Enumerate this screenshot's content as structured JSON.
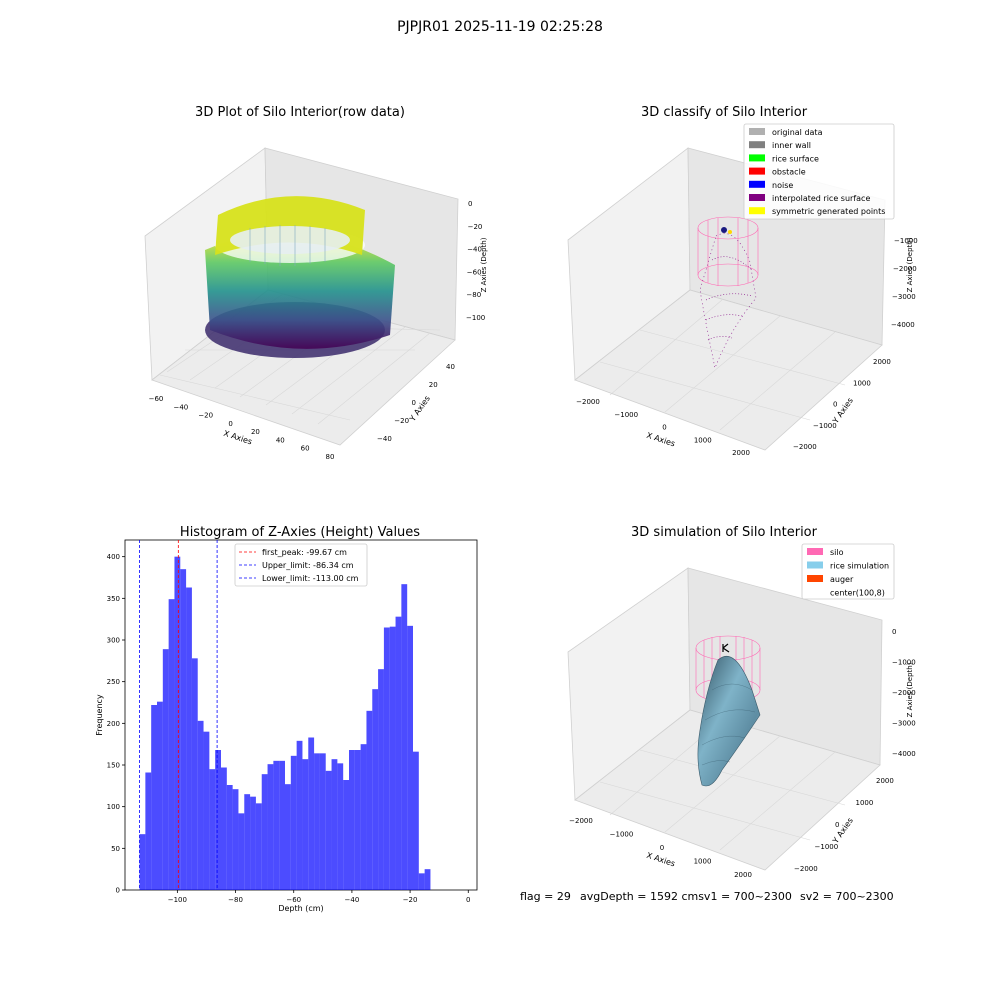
{
  "figure": {
    "suptitle": "PJPJR01 2025-11-19 02:25:28",
    "status_line": {
      "flag": "flag = 29",
      "avg_depth": "avgDepth = 1592 cmsv1 = 700~2300",
      "sv2": "sv2 = 700~2300"
    }
  },
  "panels": {
    "raw": {
      "title": "3D Plot of Silo Interior(row data)",
      "xlabel": "X Axies",
      "ylabel": "Y Axies",
      "zlabel": "Z Axies (Depth)",
      "xticks": [
        "−60",
        "−40",
        "−20",
        "0",
        "20",
        "40",
        "60",
        "80"
      ],
      "yticks": [
        "−40",
        "−20",
        "0",
        "20",
        "40"
      ],
      "zticks": [
        "0",
        "−20",
        "−40",
        "−60",
        "−80",
        "−100"
      ]
    },
    "classify": {
      "title": "3D classify of Silo Interior",
      "xlabel": "X Axies",
      "ylabel": "Y Axies",
      "zlabel": "Z Axies (Depth)",
      "xticks": [
        "−2000",
        "−1000",
        "0",
        "1000",
        "2000"
      ],
      "yticks": [
        "−2000",
        "−1000",
        "0",
        "1000",
        "2000"
      ],
      "zticks": [
        "−1000",
        "−2000",
        "−3000",
        "−4000"
      ],
      "legend": [
        {
          "label": "original data",
          "color": "#b0b0b0"
        },
        {
          "label": "inner wall",
          "color": "#808080"
        },
        {
          "label": "rice surface",
          "color": "#00ff00"
        },
        {
          "label": "obstacle",
          "color": "#ff0000"
        },
        {
          "label": "noise",
          "color": "#0000ff"
        },
        {
          "label": "interpolated rice surface",
          "color": "#800080"
        },
        {
          "label": "symmetric generated points",
          "color": "#ffff00"
        }
      ]
    },
    "simulation": {
      "title": "3D simulation of Silo Interior",
      "xlabel": "X Axies",
      "ylabel": "Y Axies",
      "zlabel": "Z Axies (Depth)",
      "xticks": [
        "−2000",
        "−1000",
        "0",
        "1000",
        "2000"
      ],
      "yticks": [
        "−2000",
        "−1000",
        "0",
        "1000",
        "2000"
      ],
      "zticks": [
        "0",
        "−1000",
        "−2000",
        "−3000",
        "−4000"
      ],
      "legend": [
        {
          "label": "silo",
          "color": "#ff69b4"
        },
        {
          "label": "rice simulation",
          "color": "#87ceeb"
        },
        {
          "label": "auger",
          "color": "#ff4500"
        },
        {
          "label": "center(100,8)",
          "color": "#ffffff"
        }
      ]
    }
  },
  "chart_data": [
    {
      "type": "bar",
      "title": "Histogram of Z-Axies (Height) Values",
      "xlabel": "Depth (cm)",
      "ylabel": "Frequency",
      "xlim": [
        -118,
        3
      ],
      "ylim": [
        0,
        420
      ],
      "xticks": [
        -100,
        -80,
        -60,
        -40,
        -20,
        0
      ],
      "yticks": [
        0,
        50,
        100,
        150,
        200,
        250,
        300,
        350,
        400
      ],
      "bar_color": "#0000ff",
      "bin_start": -113,
      "bin_width": 2.0,
      "values": [
        67,
        141,
        222,
        226,
        289,
        349,
        400,
        385,
        363,
        278,
        203,
        190,
        145,
        168,
        147,
        126,
        121,
        92,
        115,
        112,
        104,
        139,
        151,
        155,
        155,
        127,
        161,
        179,
        157,
        183,
        164,
        164,
        143,
        157,
        152,
        132,
        168,
        168,
        175,
        215,
        241,
        265,
        315,
        316,
        328,
        367,
        317,
        166,
        20,
        25
      ],
      "vlines": [
        {
          "label": "first_peak: -99.67 cm",
          "x": -99.67,
          "color": "#ff0000"
        },
        {
          "label": "Upper_limit: -86.34 cm",
          "x": -86.34,
          "color": "#0000ff"
        },
        {
          "label": "Lower_limit: -113.00 cm",
          "x": -113.0,
          "color": "#0000ff"
        }
      ],
      "legend_position": "upper center"
    }
  ]
}
